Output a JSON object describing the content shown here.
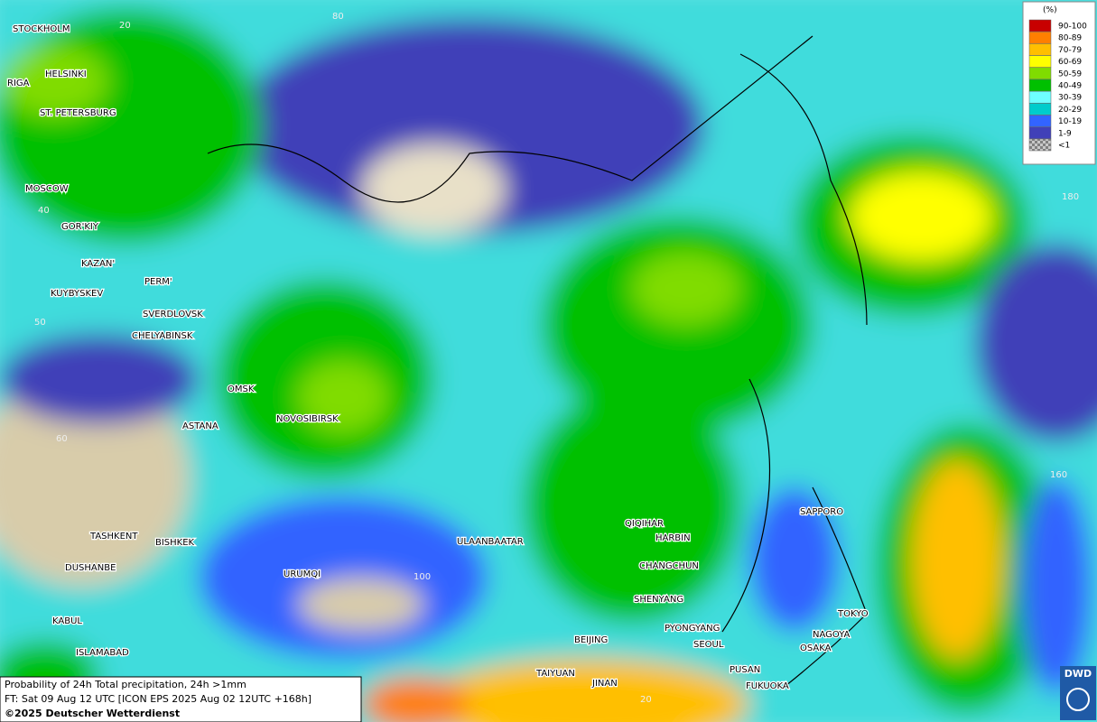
{
  "map": {
    "cities": [
      "STOCKHOLM",
      "HELSINKI",
      "RIGA",
      "ST. PETERSBURG",
      "MOSCOW",
      "GOR'KIY",
      "KAZAN'",
      "PERM'",
      "KUYBYSKEV",
      "SVERDLOVSK",
      "CHELYABINSK",
      "OMSK",
      "ASTANA",
      "NOVOSIBIRSK",
      "TASHKENT",
      "BISHKEK",
      "DUSHANBE",
      "URUMQI",
      "KABUL",
      "ISLAMABAD",
      "ULAANBAATAR",
      "QIQIHAR",
      "HARBIN",
      "CHANGCHUN",
      "SHENYANG",
      "PYONGYANG",
      "SEOUL",
      "BEIJING",
      "TAIYUAN",
      "JINAN",
      "PUSAN",
      "FUKUOKA",
      "SAPPORO",
      "TOKYO",
      "NAGOYA",
      "OSAKA"
    ],
    "grid_labels": [
      "20",
      "80",
      "40",
      "50",
      "60",
      "100",
      "180",
      "160",
      "20"
    ]
  },
  "legend": {
    "title": "(%)",
    "items": [
      {
        "label": "90-100",
        "color": "#c80000"
      },
      {
        "label": "80-89",
        "color": "#ff7f00"
      },
      {
        "label": "70-79",
        "color": "#ffbf00"
      },
      {
        "label": "60-69",
        "color": "#ffff00"
      },
      {
        "label": "50-59",
        "color": "#80dc00"
      },
      {
        "label": "40-49",
        "color": "#00c000"
      },
      {
        "label": "30-39",
        "color": "#6effff"
      },
      {
        "label": "20-29",
        "color": "#00cccc"
      },
      {
        "label": "10-19",
        "color": "#3264ff"
      },
      {
        "label": "1-9",
        "color": "#4040b8"
      },
      {
        "label": "<1",
        "color": "#a0a0a0"
      }
    ]
  },
  "caption": {
    "line1": "Probability of 24h Total precipitation, 24h >1mm",
    "line2": "FT: Sat 09 Aug 12 UTC [ICON EPS 2025 Aug 02 12UTC +168h]",
    "copyright": "©2025 Deutscher Wetterdienst"
  },
  "logo": {
    "text": "DWD"
  }
}
